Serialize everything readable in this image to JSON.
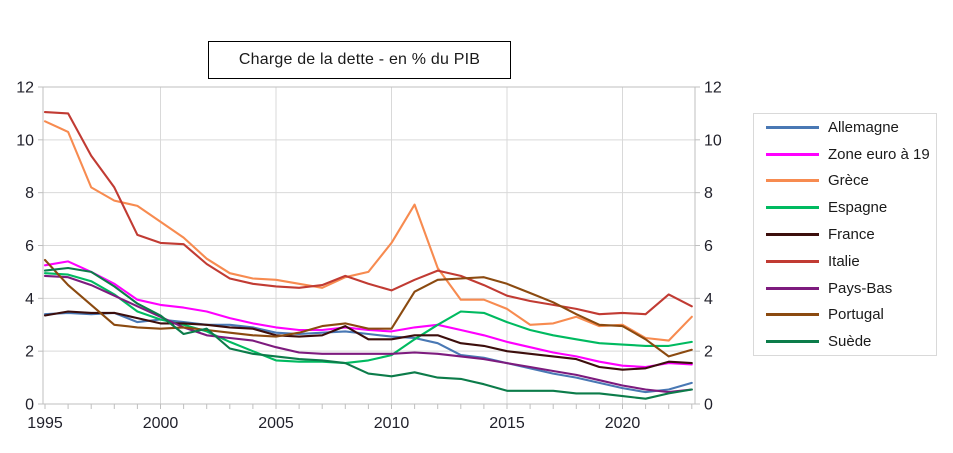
{
  "title": "Charge de la dette - en % du PIB",
  "colors": {
    "grid": "#d9d9d9",
    "axis": "#bfbfbf",
    "tick": "#bfbfbf",
    "text": "#21212b",
    "title_border": "#000000",
    "legend_border": "#d9d9d9",
    "background": "#ffffff"
  },
  "chart_data": {
    "type": "line",
    "title": "Charge de la dette - en % du PIB",
    "xlabel": "",
    "ylabel": "",
    "ylim": [
      0,
      12
    ],
    "yticks": [
      0,
      2,
      4,
      6,
      8,
      10,
      12
    ],
    "xticks": [
      1995,
      2000,
      2005,
      2010,
      2015,
      2020
    ],
    "grid": true,
    "legend_position": "right",
    "dual_y_axis": true,
    "x": [
      1995,
      1996,
      1997,
      1998,
      1999,
      2000,
      2001,
      2002,
      2003,
      2004,
      2005,
      2006,
      2007,
      2008,
      2009,
      2010,
      2011,
      2012,
      2013,
      2014,
      2015,
      2016,
      2017,
      2018,
      2019,
      2020,
      2021,
      2022,
      2023
    ],
    "series": [
      {
        "name": "Allemagne",
        "color": "#4978b4",
        "values": [
          3.4,
          3.45,
          3.4,
          3.45,
          3.1,
          3.2,
          3.1,
          3.0,
          3.0,
          2.9,
          2.7,
          2.65,
          2.7,
          2.75,
          2.65,
          2.55,
          2.5,
          2.3,
          1.85,
          1.75,
          1.55,
          1.35,
          1.15,
          1.0,
          0.8,
          0.6,
          0.45,
          0.55,
          0.8
        ]
      },
      {
        "name": "Zone euro à 19",
        "color": "#ff00ff",
        "values": [
          5.25,
          5.4,
          5.0,
          4.55,
          3.95,
          3.75,
          3.65,
          3.5,
          3.25,
          3.05,
          2.9,
          2.8,
          2.8,
          2.9,
          2.8,
          2.75,
          2.9,
          3.0,
          2.8,
          2.6,
          2.35,
          2.15,
          1.95,
          1.8,
          1.6,
          1.45,
          1.4,
          1.55,
          1.5
        ]
      },
      {
        "name": "Grèce",
        "color": "#f78b50",
        "values": [
          10.7,
          10.3,
          8.2,
          7.7,
          7.5,
          6.9,
          6.3,
          5.5,
          4.95,
          4.75,
          4.7,
          4.55,
          4.4,
          4.8,
          5.0,
          6.1,
          7.55,
          5.15,
          3.95,
          3.95,
          3.6,
          3.0,
          3.05,
          3.3,
          2.95,
          3.0,
          2.5,
          2.4,
          3.3
        ]
      },
      {
        "name": "Espagne",
        "color": "#00ba60",
        "values": [
          4.95,
          4.9,
          4.65,
          4.15,
          3.5,
          3.2,
          3.0,
          2.75,
          2.35,
          2.0,
          1.65,
          1.6,
          1.6,
          1.55,
          1.65,
          1.85,
          2.45,
          3.0,
          3.5,
          3.45,
          3.1,
          2.8,
          2.6,
          2.45,
          2.3,
          2.25,
          2.2,
          2.2,
          2.35
        ]
      },
      {
        "name": "France",
        "color": "#3c0e0c",
        "values": [
          3.35,
          3.5,
          3.45,
          3.45,
          3.25,
          3.05,
          3.05,
          3.0,
          2.9,
          2.85,
          2.6,
          2.55,
          2.6,
          2.95,
          2.45,
          2.45,
          2.6,
          2.6,
          2.3,
          2.2,
          2.0,
          1.9,
          1.8,
          1.7,
          1.4,
          1.3,
          1.35,
          1.6,
          1.55
        ]
      },
      {
        "name": "Italie",
        "color": "#c13b33",
        "values": [
          11.05,
          11.0,
          9.4,
          8.2,
          6.4,
          6.1,
          6.05,
          5.3,
          4.75,
          4.55,
          4.45,
          4.4,
          4.5,
          4.85,
          4.55,
          4.3,
          4.7,
          5.05,
          4.85,
          4.5,
          4.1,
          3.9,
          3.75,
          3.6,
          3.4,
          3.45,
          3.4,
          4.15,
          3.7
        ]
      },
      {
        "name": "Pays-Bas",
        "color": "#7d1b7e",
        "values": [
          4.85,
          4.8,
          4.5,
          4.1,
          3.7,
          3.3,
          2.9,
          2.6,
          2.5,
          2.4,
          2.15,
          1.95,
          1.9,
          1.9,
          1.9,
          1.9,
          1.95,
          1.9,
          1.8,
          1.7,
          1.55,
          1.4,
          1.25,
          1.1,
          0.9,
          0.7,
          0.55,
          0.45,
          0.55
        ]
      },
      {
        "name": "Portugal",
        "color": "#8b4a10",
        "values": [
          5.45,
          4.5,
          3.75,
          3.0,
          2.9,
          2.85,
          2.9,
          2.8,
          2.7,
          2.6,
          2.55,
          2.7,
          2.95,
          3.05,
          2.85,
          2.85,
          4.25,
          4.7,
          4.75,
          4.8,
          4.55,
          4.2,
          3.85,
          3.4,
          3.0,
          2.95,
          2.45,
          1.8,
          2.05
        ]
      },
      {
        "name": "Suède",
        "color": "#0c7c4a",
        "values": [
          5.05,
          5.15,
          5.0,
          4.45,
          3.8,
          3.35,
          2.65,
          2.85,
          2.1,
          1.9,
          1.8,
          1.7,
          1.65,
          1.55,
          1.15,
          1.05,
          1.2,
          1.0,
          0.95,
          0.75,
          0.5,
          0.5,
          0.5,
          0.4,
          0.4,
          0.3,
          0.2,
          0.4,
          0.55
        ]
      }
    ]
  }
}
